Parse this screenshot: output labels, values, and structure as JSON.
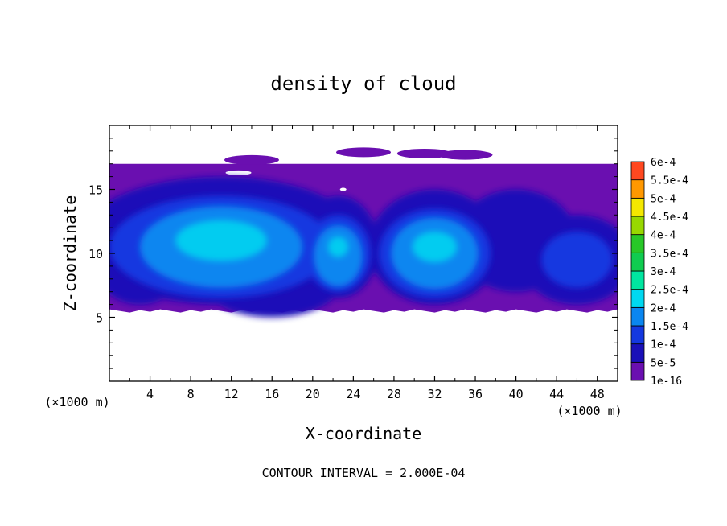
{
  "chart_data": {
    "type": "heatmap",
    "title": "density of cloud",
    "xlabel": "X-coordinate",
    "ylabel": "Z-coordinate",
    "x_unit": "(×1000 m)",
    "y_unit": "(×1000 m)",
    "footnote": "CONTOUR INTERVAL = 2.000E-04",
    "xlim": [
      0,
      50
    ],
    "ylim": [
      0,
      20
    ],
    "x_ticks": [
      "4",
      "8",
      "12",
      "16",
      "20",
      "24",
      "28",
      "32",
      "36",
      "40",
      "44",
      "48"
    ],
    "y_ticks": [
      "5",
      "10",
      "15"
    ],
    "colorbar": {
      "levels": [
        "1e-16",
        "5e-5",
        "1e-4",
        "1.5e-4",
        "2e-4",
        "2.5e-4",
        "3e-4",
        "3.5e-4",
        "4e-4",
        "4.5e-4",
        "5e-4",
        "5.5e-4",
        "6e-4"
      ],
      "colors": [
        "#6a0fb0",
        "#1a10b8",
        "#1438e0",
        "#0a86f0",
        "#00d8f0",
        "#00e6a0",
        "#10cc50",
        "#28c828",
        "#98d800",
        "#f4e800",
        "#ff9800",
        "#ff4820",
        "#f88c8c"
      ]
    },
    "cloud_layer": {
      "base_z": 5.5,
      "top_z": 17
    },
    "cores": [
      {
        "x": 11,
        "z": 11,
        "peak": "1.5e-4"
      },
      {
        "x": 22.5,
        "z": 10.5,
        "peak": "1.5e-4"
      },
      {
        "x": 32,
        "z": 10.5,
        "peak": "1.5e-4"
      },
      {
        "x": 46,
        "z": 9.5,
        "peak": "1e-4"
      }
    ]
  }
}
